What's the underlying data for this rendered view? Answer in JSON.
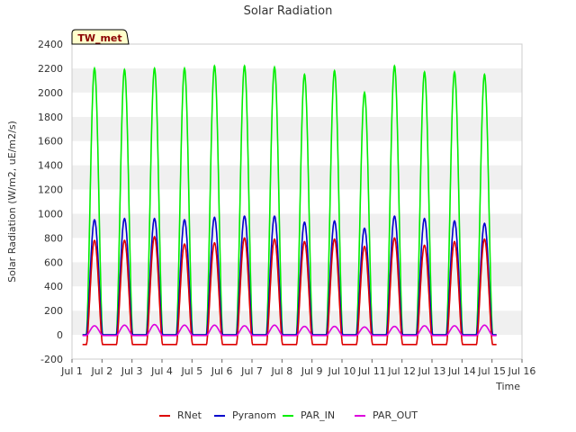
{
  "chart_data": {
    "type": "line",
    "title": "Solar Radiation",
    "xlabel": "Time",
    "ylabel": "Solar Radiation (W/m2, uE/m2/s)",
    "badge": "TW_met",
    "xlim": [
      1,
      16
    ],
    "ylim": [
      -200,
      2400
    ],
    "x_ticks": [
      {
        "value": 1,
        "label": "Jul 1"
      },
      {
        "value": 2,
        "label": "Jul 2"
      },
      {
        "value": 3,
        "label": "Jul 3"
      },
      {
        "value": 4,
        "label": "Jul 4"
      },
      {
        "value": 5,
        "label": "Jul 5"
      },
      {
        "value": 6,
        "label": "Jul 6"
      },
      {
        "value": 7,
        "label": "Jul 7"
      },
      {
        "value": 8,
        "label": "Jul 8"
      },
      {
        "value": 9,
        "label": "Jul 9"
      },
      {
        "value": 10,
        "label": "Jul 10"
      },
      {
        "value": 11,
        "label": "Jul 11"
      },
      {
        "value": 12,
        "label": "Jul 12"
      },
      {
        "value": 13,
        "label": "Jul 13"
      },
      {
        "value": 14,
        "label": "Jul 14"
      },
      {
        "value": 15,
        "label": "Jul 15"
      },
      {
        "value": 16,
        "label": "Jul 16"
      }
    ],
    "y_ticks": [
      -200,
      0,
      200,
      400,
      600,
      800,
      1000,
      1200,
      1400,
      1600,
      1800,
      2000,
      2200,
      2400
    ],
    "grid": "horizontal bands",
    "legend_position": "bottom-center",
    "day_peak_x": [
      1.75,
      2.75,
      3.75,
      4.75,
      5.75,
      6.75,
      7.75,
      8.75,
      9.75,
      10.75,
      11.75,
      12.75,
      13.75,
      14.75
    ],
    "series": [
      {
        "name": "RNet",
        "color": "#dd0000",
        "night_value": -80,
        "day_peaks": [
          780,
          780,
          810,
          750,
          760,
          800,
          790,
          770,
          790,
          730,
          800,
          740,
          770,
          790
        ]
      },
      {
        "name": "Pyranom",
        "color": "#0000cc",
        "night_value": 0,
        "day_peaks": [
          950,
          960,
          960,
          950,
          970,
          980,
          980,
          930,
          940,
          880,
          980,
          960,
          940,
          920
        ]
      },
      {
        "name": "PAR_IN",
        "color": "#00ee00",
        "night_value": 0,
        "day_peaks": [
          2200,
          2190,
          2200,
          2200,
          2220,
          2220,
          2210,
          2150,
          2180,
          2000,
          2220,
          2170,
          2170,
          2150
        ]
      },
      {
        "name": "PAR_OUT",
        "color": "#dd00dd",
        "night_value": -5,
        "day_peaks": [
          75,
          80,
          85,
          80,
          80,
          75,
          80,
          70,
          70,
          65,
          70,
          75,
          75,
          80
        ]
      }
    ]
  }
}
